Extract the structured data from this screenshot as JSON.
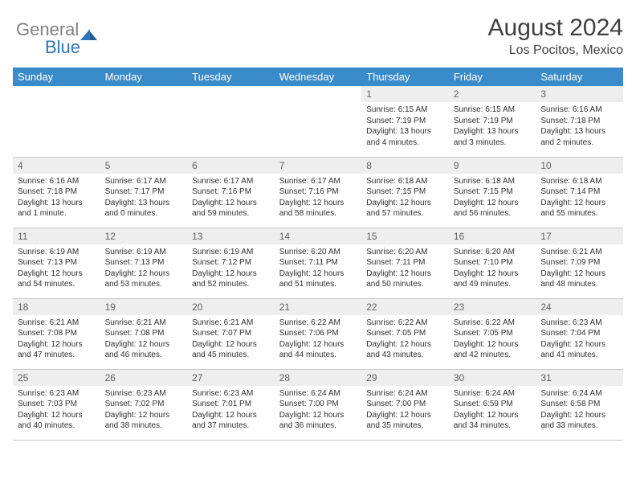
{
  "logo": {
    "gray": "General",
    "blue": "Blue"
  },
  "title": {
    "month": "August 2024",
    "location": "Los Pocitos, Mexico"
  },
  "colors": {
    "header_bg": "#3a8bc9",
    "header_text": "#ffffff",
    "daynum_bg": "#eeeeee",
    "border": "#c8c8c8",
    "logo_gray": "#808080",
    "logo_blue": "#2e75b6"
  },
  "weekdays": [
    "Sunday",
    "Monday",
    "Tuesday",
    "Wednesday",
    "Thursday",
    "Friday",
    "Saturday"
  ],
  "cells": [
    {
      "n": "",
      "t": "",
      "empty": true
    },
    {
      "n": "",
      "t": "",
      "empty": true
    },
    {
      "n": "",
      "t": "",
      "empty": true
    },
    {
      "n": "",
      "t": "",
      "empty": true
    },
    {
      "n": "1",
      "t": "Sunrise: 6:15 AM\nSunset: 7:19 PM\nDaylight: 13 hours and 4 minutes."
    },
    {
      "n": "2",
      "t": "Sunrise: 6:15 AM\nSunset: 7:19 PM\nDaylight: 13 hours and 3 minutes."
    },
    {
      "n": "3",
      "t": "Sunrise: 6:16 AM\nSunset: 7:18 PM\nDaylight: 13 hours and 2 minutes."
    },
    {
      "n": "4",
      "t": "Sunrise: 6:16 AM\nSunset: 7:18 PM\nDaylight: 13 hours and 1 minute."
    },
    {
      "n": "5",
      "t": "Sunrise: 6:17 AM\nSunset: 7:17 PM\nDaylight: 13 hours and 0 minutes."
    },
    {
      "n": "6",
      "t": "Sunrise: 6:17 AM\nSunset: 7:16 PM\nDaylight: 12 hours and 59 minutes."
    },
    {
      "n": "7",
      "t": "Sunrise: 6:17 AM\nSunset: 7:16 PM\nDaylight: 12 hours and 58 minutes."
    },
    {
      "n": "8",
      "t": "Sunrise: 6:18 AM\nSunset: 7:15 PM\nDaylight: 12 hours and 57 minutes."
    },
    {
      "n": "9",
      "t": "Sunrise: 6:18 AM\nSunset: 7:15 PM\nDaylight: 12 hours and 56 minutes."
    },
    {
      "n": "10",
      "t": "Sunrise: 6:18 AM\nSunset: 7:14 PM\nDaylight: 12 hours and 55 minutes."
    },
    {
      "n": "11",
      "t": "Sunrise: 6:19 AM\nSunset: 7:13 PM\nDaylight: 12 hours and 54 minutes."
    },
    {
      "n": "12",
      "t": "Sunrise: 6:19 AM\nSunset: 7:13 PM\nDaylight: 12 hours and 53 minutes."
    },
    {
      "n": "13",
      "t": "Sunrise: 6:19 AM\nSunset: 7:12 PM\nDaylight: 12 hours and 52 minutes."
    },
    {
      "n": "14",
      "t": "Sunrise: 6:20 AM\nSunset: 7:11 PM\nDaylight: 12 hours and 51 minutes."
    },
    {
      "n": "15",
      "t": "Sunrise: 6:20 AM\nSunset: 7:11 PM\nDaylight: 12 hours and 50 minutes."
    },
    {
      "n": "16",
      "t": "Sunrise: 6:20 AM\nSunset: 7:10 PM\nDaylight: 12 hours and 49 minutes."
    },
    {
      "n": "17",
      "t": "Sunrise: 6:21 AM\nSunset: 7:09 PM\nDaylight: 12 hours and 48 minutes."
    },
    {
      "n": "18",
      "t": "Sunrise: 6:21 AM\nSunset: 7:08 PM\nDaylight: 12 hours and 47 minutes."
    },
    {
      "n": "19",
      "t": "Sunrise: 6:21 AM\nSunset: 7:08 PM\nDaylight: 12 hours and 46 minutes."
    },
    {
      "n": "20",
      "t": "Sunrise: 6:21 AM\nSunset: 7:07 PM\nDaylight: 12 hours and 45 minutes."
    },
    {
      "n": "21",
      "t": "Sunrise: 6:22 AM\nSunset: 7:06 PM\nDaylight: 12 hours and 44 minutes."
    },
    {
      "n": "22",
      "t": "Sunrise: 6:22 AM\nSunset: 7:05 PM\nDaylight: 12 hours and 43 minutes."
    },
    {
      "n": "23",
      "t": "Sunrise: 6:22 AM\nSunset: 7:05 PM\nDaylight: 12 hours and 42 minutes."
    },
    {
      "n": "24",
      "t": "Sunrise: 6:23 AM\nSunset: 7:04 PM\nDaylight: 12 hours and 41 minutes."
    },
    {
      "n": "25",
      "t": "Sunrise: 6:23 AM\nSunset: 7:03 PM\nDaylight: 12 hours and 40 minutes."
    },
    {
      "n": "26",
      "t": "Sunrise: 6:23 AM\nSunset: 7:02 PM\nDaylight: 12 hours and 38 minutes."
    },
    {
      "n": "27",
      "t": "Sunrise: 6:23 AM\nSunset: 7:01 PM\nDaylight: 12 hours and 37 minutes."
    },
    {
      "n": "28",
      "t": "Sunrise: 6:24 AM\nSunset: 7:00 PM\nDaylight: 12 hours and 36 minutes."
    },
    {
      "n": "29",
      "t": "Sunrise: 6:24 AM\nSunset: 7:00 PM\nDaylight: 12 hours and 35 minutes."
    },
    {
      "n": "30",
      "t": "Sunrise: 6:24 AM\nSunset: 6:59 PM\nDaylight: 12 hours and 34 minutes."
    },
    {
      "n": "31",
      "t": "Sunrise: 6:24 AM\nSunset: 6:58 PM\nDaylight: 12 hours and 33 minutes."
    }
  ]
}
